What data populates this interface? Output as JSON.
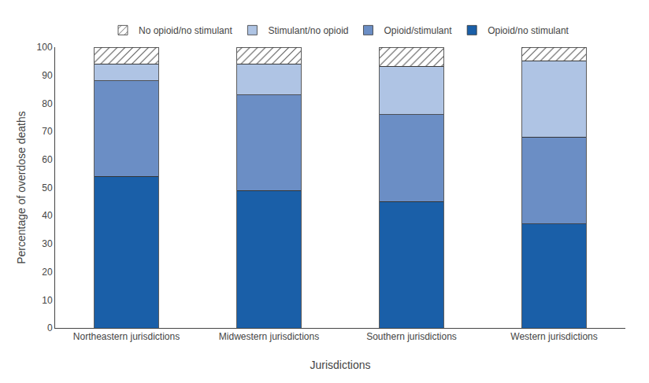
{
  "chart_data": {
    "type": "bar",
    "stacked": true,
    "categories": [
      "Northeastern jurisdictions",
      "Midwestern jurisdictions",
      "Southern jurisdictions",
      "Western jurisdictions"
    ],
    "series": [
      {
        "name": "Opioid/no stimulant",
        "color": "#1a5fa8",
        "values": [
          54,
          49,
          45,
          37
        ]
      },
      {
        "name": "Opioid/stimulant",
        "color": "#6b8ec5",
        "values": [
          34,
          34,
          31,
          31
        ]
      },
      {
        "name": "Stimulant/no opioid",
        "color": "#afc4e4",
        "values": [
          6,
          11,
          17,
          27
        ]
      },
      {
        "name": "No opioid/no stimulant",
        "color": "#e8eaf0",
        "values": [
          6,
          6,
          7,
          5
        ]
      }
    ],
    "xlabel": "Jurisdictions",
    "ylabel": "Percentage of overdose deaths",
    "ylim": [
      0,
      100
    ],
    "yticks": [
      0,
      10,
      20,
      30,
      40,
      50,
      60,
      70,
      80,
      90,
      100
    ],
    "grid": false,
    "legend": "top"
  }
}
